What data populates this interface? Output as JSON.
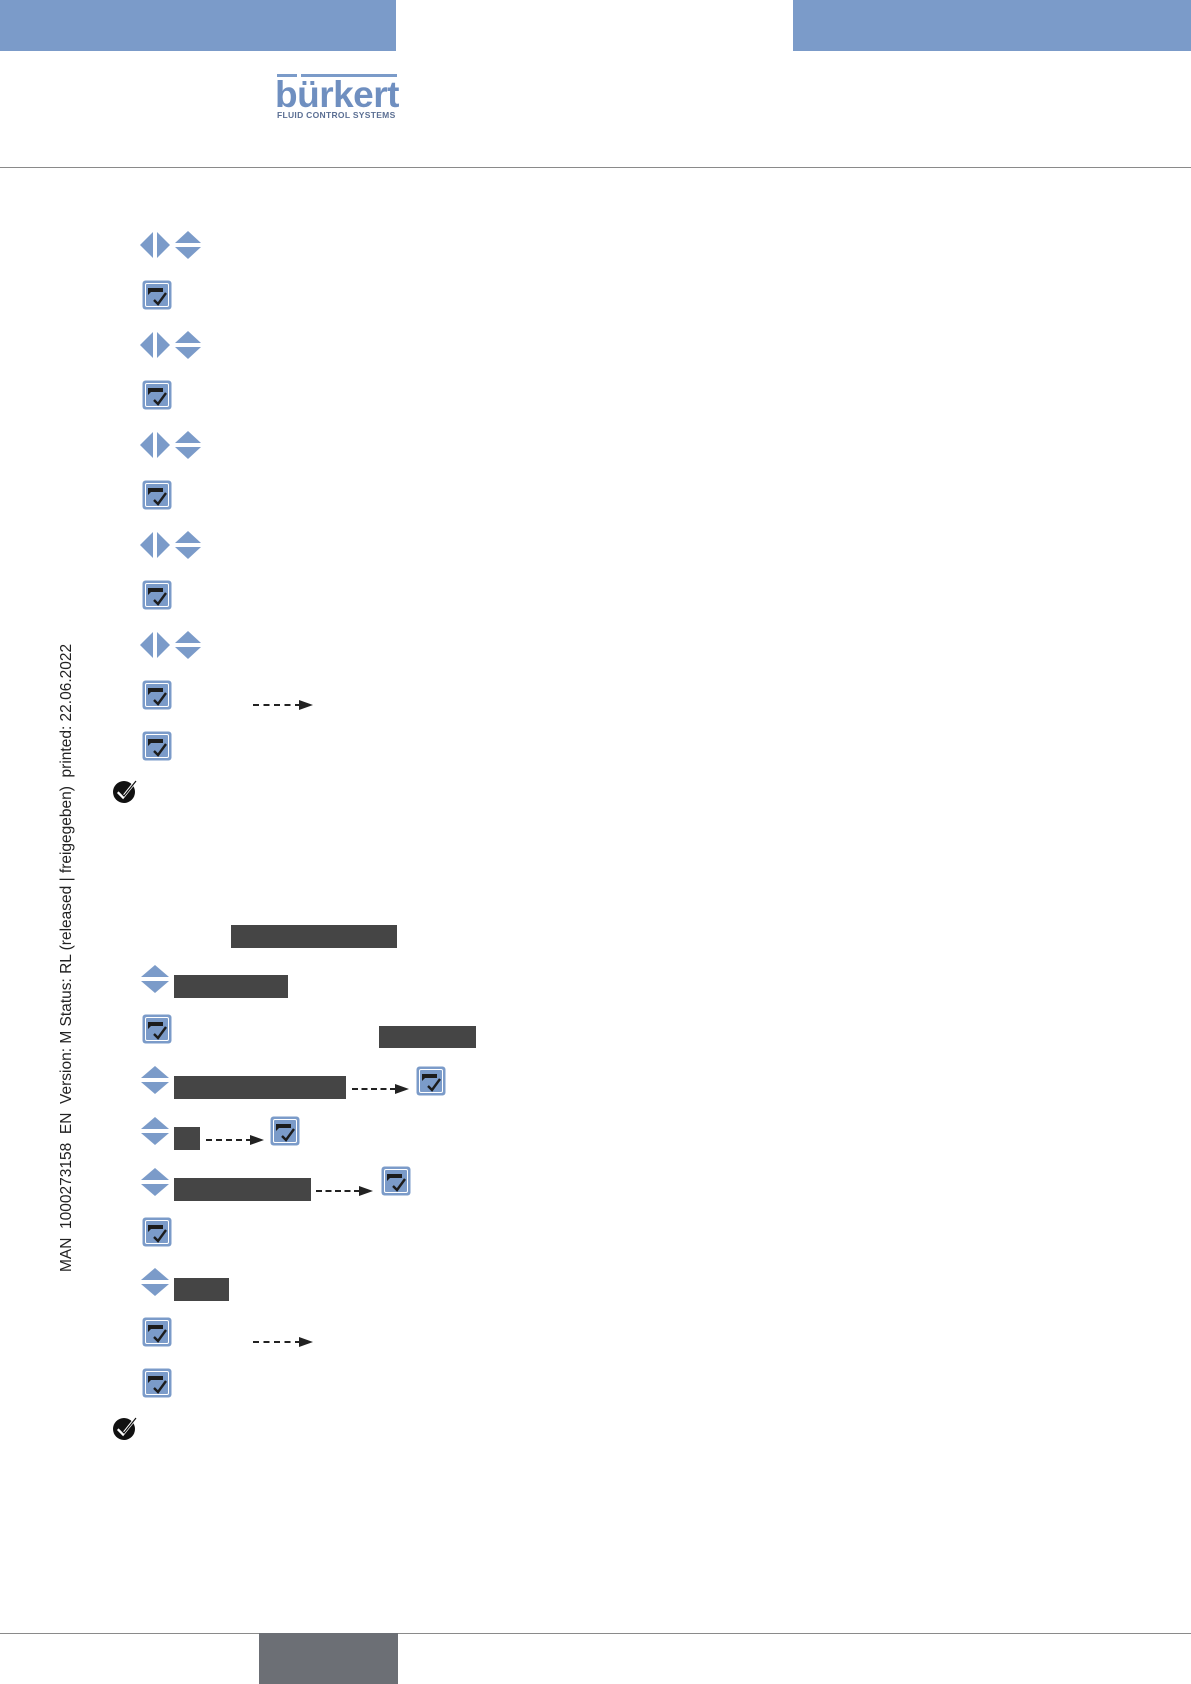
{
  "header": {
    "brand_name": "bürkert",
    "brand_tagline": "FLUID CONTROL SYSTEMS",
    "brand_color": "#7b9bc9"
  },
  "side_note": {
    "text": "MAN  1000273158  EN  Version: M Status: RL (released | freigegeben)  printed: 22.06.2022"
  },
  "icons": {
    "navigate": "arrow-keys-icon",
    "up_down": "up-down-arrows-icon",
    "confirm": "enter-key-icon",
    "done": "check-circle-icon"
  },
  "colors": {
    "icon_blue": "#7b9bc9",
    "redaction": "#454545",
    "footer_tab": "#6c6f75"
  }
}
